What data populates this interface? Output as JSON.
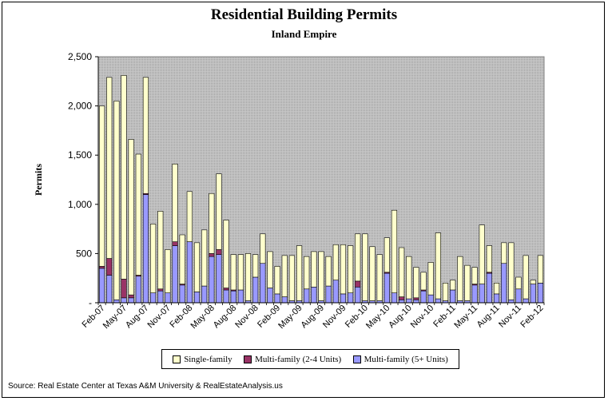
{
  "title": "Residential Building Permits",
  "subtitle": "Inland Empire",
  "ylabel": "Permits",
  "source": "Source: Real Estate Center at Texas A&M University & RealEstateAnalysis.us",
  "colors": {
    "single_family": "#FFFFCC",
    "multi_2_4": "#993366",
    "multi_5plus": "#9999FF",
    "plot_bg": "#C0C0C0",
    "bar_outline": "#000000"
  },
  "legend": [
    {
      "label": "Single-family",
      "color": "#FFFFCC"
    },
    {
      "label": "Multi-family (2-4 Units)",
      "color": "#993366"
    },
    {
      "label": "Multi-family (5+ Units)",
      "color": "#9999FF"
    }
  ],
  "chart_data": {
    "type": "bar",
    "stacked": true,
    "title": "Residential Building Permits",
    "subtitle": "Inland Empire",
    "xlabel": "",
    "ylabel": "Permits",
    "ylim": [
      0,
      2500
    ],
    "yticks": [
      0,
      500,
      1000,
      1500,
      2000,
      2500
    ],
    "ytick_labels": [
      "-",
      "500",
      "1,000",
      "1,500",
      "2,000",
      "2,500"
    ],
    "xtick_labels": [
      "Feb-07",
      "May-07",
      "Aug-07",
      "Nov-07",
      "Feb-08",
      "May-08",
      "Aug-08",
      "Nov-08",
      "Feb-09",
      "May-09",
      "Aug-09",
      "Nov-09",
      "Feb-10",
      "May-10",
      "Aug-10",
      "Nov-10",
      "Feb-11",
      "May-11",
      "Aug-11",
      "Nov-11",
      "Feb-12"
    ],
    "grid": false,
    "legend_position": "bottom",
    "categories": [
      "Feb-07",
      "Mar-07",
      "Apr-07",
      "May-07",
      "Jun-07",
      "Jul-07",
      "Aug-07",
      "Sep-07",
      "Oct-07",
      "Nov-07",
      "Dec-07",
      "Jan-08",
      "Feb-08",
      "Mar-08",
      "Apr-08",
      "May-08",
      "Jun-08",
      "Jul-08",
      "Aug-08",
      "Sep-08",
      "Oct-08",
      "Nov-08",
      "Dec-08",
      "Jan-09",
      "Feb-09",
      "Mar-09",
      "Apr-09",
      "May-09",
      "Jun-09",
      "Jul-09",
      "Aug-09",
      "Sep-09",
      "Oct-09",
      "Nov-09",
      "Dec-09",
      "Jan-10",
      "Feb-10",
      "Mar-10",
      "Apr-10",
      "May-10",
      "Jun-10",
      "Jul-10",
      "Aug-10",
      "Sep-10",
      "Oct-10",
      "Nov-10",
      "Dec-10",
      "Jan-11",
      "Feb-11",
      "Mar-11",
      "Apr-11",
      "May-11",
      "Jun-11",
      "Jul-11",
      "Aug-11",
      "Sep-11",
      "Oct-11",
      "Nov-11",
      "Dec-11",
      "Jan-12",
      "Feb-12"
    ],
    "series": [
      {
        "name": "Multi-family (5+ Units)",
        "values": [
          350,
          280,
          30,
          50,
          50,
          270,
          1100,
          100,
          120,
          100,
          580,
          180,
          620,
          110,
          170,
          470,
          490,
          130,
          120,
          130,
          20,
          260,
          400,
          150,
          90,
          60,
          20,
          20,
          140,
          160,
          20,
          170,
          230,
          90,
          100,
          160,
          20,
          20,
          20,
          300,
          100,
          30,
          40,
          30,
          120,
          80,
          40,
          20,
          130,
          20,
          20,
          180,
          190,
          300,
          90,
          400,
          30,
          140,
          40,
          190,
          200
        ]
      },
      {
        "name": "Multi-family (2-4 Units)",
        "values": [
          20,
          170,
          0,
          190,
          30,
          10,
          10,
          0,
          20,
          0,
          40,
          10,
          0,
          0,
          0,
          30,
          50,
          20,
          10,
          0,
          0,
          0,
          0,
          0,
          0,
          0,
          0,
          0,
          0,
          0,
          0,
          0,
          0,
          0,
          0,
          60,
          0,
          0,
          0,
          10,
          0,
          30,
          0,
          20,
          10,
          0,
          0,
          0,
          0,
          0,
          0,
          10,
          0,
          10,
          0,
          0,
          0,
          0,
          0,
          0,
          0
        ]
      },
      {
        "name": "Single-family",
        "values": [
          1630,
          1840,
          2020,
          2070,
          1580,
          1230,
          1180,
          700,
          790,
          440,
          790,
          500,
          510,
          500,
          570,
          610,
          770,
          690,
          360,
          360,
          480,
          230,
          300,
          370,
          280,
          420,
          460,
          560,
          330,
          360,
          500,
          300,
          360,
          500,
          480,
          480,
          680,
          550,
          470,
          350,
          840,
          500,
          430,
          310,
          180,
          330,
          670,
          180,
          100,
          450,
          360,
          170,
          600,
          270,
          110,
          210,
          580,
          120,
          440,
          40,
          280
        ]
      }
    ]
  }
}
